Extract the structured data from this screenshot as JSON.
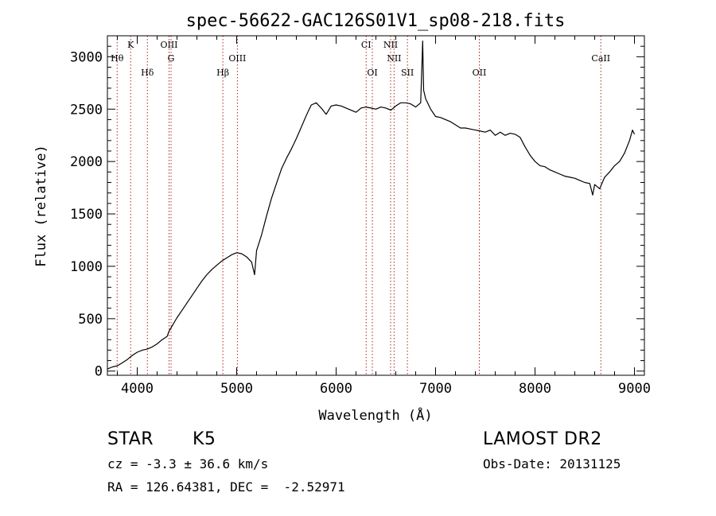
{
  "chart_data": {
    "type": "line",
    "title": "spec-56622-GAC126S01V1_sp08-218.fits",
    "xlabel": "Wavelength (Å)",
    "ylabel": "Flux (relative)",
    "xlim": [
      3700,
      9100
    ],
    "ylim": [
      -40,
      3200
    ],
    "xticks": [
      4000,
      5000,
      6000,
      7000,
      8000,
      9000
    ],
    "yticks": [
      0,
      500,
      1000,
      1500,
      2000,
      2500,
      3000
    ],
    "grid": false,
    "series": [
      {
        "x": [
          3700,
          3750,
          3800,
          3850,
          3900,
          3950,
          4000,
          4050,
          4100,
          4150,
          4200,
          4250,
          4300,
          4320,
          4350,
          4400,
          4450,
          4500,
          4550,
          4600,
          4650,
          4700,
          4750,
          4800,
          4850,
          4900,
          4950,
          5000,
          5050,
          5100,
          5150,
          5180,
          5200,
          5250,
          5300,
          5350,
          5400,
          5450,
          5500,
          5550,
          5600,
          5650,
          5700,
          5720,
          5750,
          5800,
          5850,
          5900,
          5950,
          6000,
          6050,
          6100,
          6150,
          6200,
          6250,
          6300,
          6350,
          6400,
          6450,
          6500,
          6550,
          6600,
          6650,
          6700,
          6750,
          6800,
          6850,
          6870,
          6880,
          6900,
          6950,
          7000,
          7050,
          7100,
          7150,
          7200,
          7250,
          7300,
          7350,
          7400,
          7450,
          7500,
          7550,
          7600,
          7650,
          7700,
          7750,
          7800,
          7850,
          7900,
          7950,
          8000,
          8050,
          8100,
          8150,
          8200,
          8250,
          8300,
          8350,
          8400,
          8450,
          8500,
          8550,
          8580,
          8600,
          8650,
          8700,
          8750,
          8800,
          8850,
          8900,
          8950,
          8980,
          9000
        ],
        "y": [
          20,
          40,
          50,
          80,
          110,
          150,
          180,
          200,
          210,
          230,
          260,
          300,
          330,
          380,
          430,
          510,
          580,
          650,
          720,
          790,
          860,
          920,
          970,
          1010,
          1050,
          1080,
          1110,
          1130,
          1120,
          1090,
          1040,
          920,
          1150,
          1300,
          1480,
          1650,
          1790,
          1930,
          2030,
          2120,
          2220,
          2330,
          2440,
          2480,
          2540,
          2560,
          2510,
          2450,
          2530,
          2540,
          2530,
          2510,
          2490,
          2470,
          2510,
          2520,
          2510,
          2500,
          2520,
          2510,
          2490,
          2530,
          2560,
          2560,
          2550,
          2520,
          2560,
          3150,
          2680,
          2600,
          2500,
          2430,
          2420,
          2400,
          2380,
          2350,
          2320,
          2320,
          2310,
          2300,
          2290,
          2280,
          2300,
          2250,
          2280,
          2250,
          2270,
          2260,
          2230,
          2140,
          2060,
          2000,
          1960,
          1950,
          1920,
          1900,
          1880,
          1860,
          1850,
          1840,
          1820,
          1800,
          1790,
          1680,
          1780,
          1740,
          1850,
          1900,
          1960,
          2000,
          2080,
          2200,
          2300,
          2260
        ]
      }
    ],
    "lines": [
      {
        "label": "Hθ",
        "x": 3798,
        "label_row": 2
      },
      {
        "label": "K",
        "x": 3934,
        "label_row": 1
      },
      {
        "label": "Hδ",
        "x": 4102,
        "label_row": 3
      },
      {
        "label": "OIII",
        "x": 4320,
        "label_row": 1
      },
      {
        "label": "G",
        "x": 4340,
        "label_row": 2
      },
      {
        "label": "Hβ",
        "x": 4861,
        "label_row": 3
      },
      {
        "label": "OIII",
        "x": 5007,
        "label_row": 2
      },
      {
        "label": "CI",
        "x": 6302,
        "label_row": 1
      },
      {
        "label": "OI",
        "x": 6364,
        "label_row": 3
      },
      {
        "label": "NII",
        "x": 6548,
        "label_row": 1
      },
      {
        "label": "NII",
        "x": 6583,
        "label_row": 2
      },
      {
        "label": "SII",
        "x": 6717,
        "label_row": 3
      },
      {
        "label": "OII",
        "x": 7440,
        "label_row": 3
      },
      {
        "label": "CaII",
        "x": 8662,
        "label_row": 2
      }
    ]
  },
  "info": {
    "object_class": "STAR",
    "subclass": "K5",
    "survey": "LAMOST DR2",
    "redshift_line": "cz = -3.3 ± 36.6 km/s",
    "obs_date_line": "Obs-Date: 20131125",
    "coords_line": "RA = 126.64381, DEC =  -2.52971"
  }
}
